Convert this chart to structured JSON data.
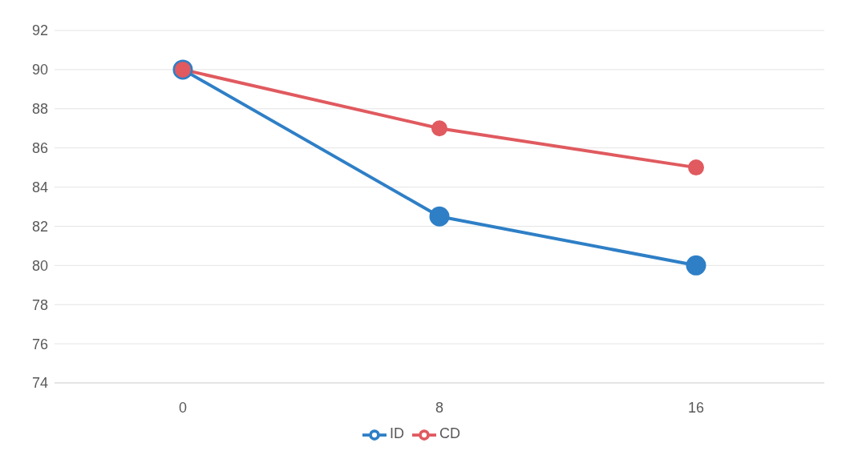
{
  "chart_data": {
    "type": "line",
    "categories": [
      "0",
      "8",
      "16"
    ],
    "series": [
      {
        "name": "ID",
        "color": "#2e7fc6",
        "values": [
          90,
          82.5,
          80
        ]
      },
      {
        "name": "CD",
        "color": "#e05a5f",
        "values": [
          90,
          87,
          85
        ]
      }
    ],
    "ylim": [
      74,
      92
    ],
    "yticks": [
      74,
      76,
      78,
      80,
      82,
      84,
      86,
      88,
      90,
      92
    ],
    "grid": "y",
    "legend": "bottom",
    "marker": "circle",
    "line_style": "solid"
  }
}
